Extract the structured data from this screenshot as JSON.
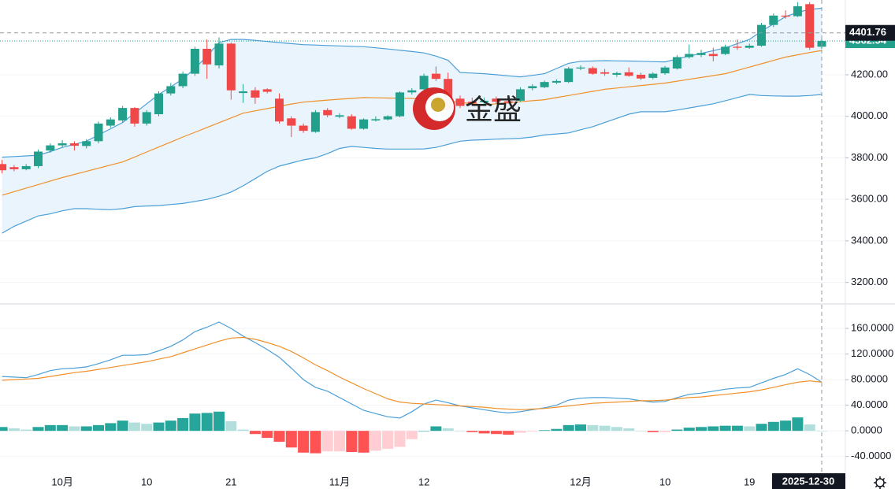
{
  "chart_data": [
    {
      "type": "candlestick",
      "categories": [
        null,
        null,
        null,
        null,
        null,
        "10月",
        null,
        null,
        null,
        null,
        null,
        null,
        "10",
        null,
        null,
        null,
        null,
        null,
        null,
        "21",
        null,
        null,
        null,
        null,
        null,
        null,
        null,
        null,
        "11月",
        null,
        null,
        null,
        null,
        null,
        null,
        "12",
        null,
        null,
        null,
        null,
        null,
        null,
        null,
        null,
        null,
        null,
        null,
        null,
        "12月",
        null,
        null,
        null,
        null,
        null,
        null,
        "10",
        null,
        null,
        null,
        null,
        null,
        null,
        "19",
        null,
        null,
        null,
        null,
        null,
        "2025-12-30"
      ],
      "open": [
        3770,
        3755,
        3745,
        3760,
        3835,
        3860,
        3870,
        3857,
        3880,
        3955,
        3980,
        4040,
        3965,
        4010,
        4110,
        4145,
        4205,
        4325,
        4245,
        4350,
        4112,
        4125,
        4130,
        4085,
        3990,
        3955,
        3925,
        4030,
        3998,
        4000,
        3940,
        3980,
        3985,
        4000,
        4115,
        4130,
        4205,
        4180,
        4085,
        4070,
        4068,
        4085,
        4072,
        4075,
        4135,
        4140,
        4162,
        4165,
        4230,
        4232,
        4212,
        4200,
        4212,
        4200,
        4185,
        4207,
        4230,
        4285,
        4295,
        4300,
        4300,
        4335,
        4330,
        4340,
        4440,
        4485,
        4482,
        4540,
        4335
      ],
      "high": [
        3790,
        3765,
        3770,
        3840,
        3870,
        3885,
        3880,
        3890,
        3975,
        3995,
        4050,
        4045,
        4030,
        4120,
        4160,
        4215,
        4335,
        4370,
        4380,
        4355,
        4155,
        4140,
        4135,
        4110,
        4000,
        3965,
        4030,
        4040,
        4015,
        4010,
        3990,
        4000,
        4005,
        4120,
        4135,
        4205,
        4240,
        4210,
        4100,
        4090,
        4090,
        4095,
        4085,
        4140,
        4155,
        4172,
        4178,
        4238,
        4245,
        4240,
        4228,
        4215,
        4235,
        4210,
        4212,
        4242,
        4295,
        4345,
        4320,
        4330,
        4345,
        4370,
        4350,
        4450,
        4495,
        4510,
        4550,
        4550,
        4375
      ],
      "low": [
        3725,
        3735,
        3740,
        3750,
        3825,
        3850,
        3835,
        3845,
        3870,
        3945,
        3970,
        3950,
        3955,
        4000,
        4100,
        4135,
        4195,
        4180,
        4230,
        4080,
        4065,
        4060,
        4110,
        3965,
        3900,
        3920,
        3920,
        3995,
        3990,
        3935,
        3935,
        3975,
        3980,
        3995,
        4105,
        4125,
        4170,
        4020,
        4040,
        4055,
        4055,
        4060,
        4060,
        4070,
        4125,
        4135,
        4155,
        4160,
        4222,
        4200,
        4195,
        4190,
        4190,
        4175,
        4178,
        4200,
        4225,
        4278,
        4285,
        4265,
        4295,
        4320,
        4325,
        4335,
        4430,
        4470,
        4478,
        4320,
        4325
      ],
      "close": [
        3740,
        3745,
        3760,
        3830,
        3860,
        3870,
        3858,
        3880,
        3965,
        3985,
        4040,
        3965,
        4020,
        4110,
        4145,
        4205,
        4325,
        4250,
        4350,
        4125,
        4120,
        4090,
        4118,
        3975,
        3955,
        3930,
        4020,
        4005,
        4005,
        3940,
        3985,
        3986,
        4000,
        4115,
        4125,
        4195,
        4180,
        4030,
        4050,
        4062,
        4075,
        4070,
        4066,
        4130,
        4145,
        4165,
        4170,
        4230,
        4235,
        4205,
        4205,
        4208,
        4195,
        4182,
        4205,
        4235,
        4285,
        4300,
        4305,
        4290,
        4335,
        4330,
        4340,
        4440,
        4485,
        4480,
        4530,
        4330,
        4362.54
      ],
      "up_color": "#22a08c",
      "down_color": "#f04848",
      "bands": {
        "upper": {
          "color": "#4a9fd8",
          "values": [
            3803,
            3806,
            3809,
            3812,
            3830,
            3850,
            3865,
            3880,
            3910,
            3940,
            3970,
            4015,
            4060,
            4105,
            4142,
            4180,
            4230,
            4290,
            4355,
            4370,
            4370,
            4366,
            4360,
            4355,
            4350,
            4345,
            4343,
            4341,
            4339,
            4337,
            4335,
            4330,
            4324,
            4318,
            4312,
            4305,
            4290,
            4270,
            4211,
            4208,
            4205,
            4200,
            4195,
            4190,
            4197,
            4205,
            4230,
            4255,
            4265,
            4266,
            4268,
            4267,
            4266,
            4265,
            4263,
            4262,
            4276,
            4290,
            4303,
            4316,
            4330,
            4350,
            4370,
            4410,
            4445,
            4480,
            4500,
            4515,
            4520
          ]
        },
        "middle": {
          "color": "#f0902a",
          "values": [
            3620,
            3637,
            3654,
            3671,
            3688,
            3705,
            3720,
            3735,
            3750,
            3765,
            3780,
            3804,
            3828,
            3852,
            3876,
            3900,
            3923,
            3946,
            3969,
            3992,
            4015,
            4026,
            4037,
            4048,
            4059,
            4068,
            4073,
            4078,
            4082,
            4086,
            4090,
            4089,
            4088,
            4087,
            4086,
            4085,
            4079,
            4073,
            4067,
            4061,
            4055,
            4060,
            4065,
            4070,
            4075,
            4080,
            4090,
            4100,
            4110,
            4120,
            4130,
            4136,
            4142,
            4148,
            4154,
            4160,
            4169,
            4178,
            4187,
            4196,
            4205,
            4221,
            4237,
            4253,
            4269,
            4285,
            4296,
            4307,
            4317
          ]
        },
        "lower": {
          "color": "#4a9fd8",
          "values": [
            3437,
            3470,
            3495,
            3520,
            3530,
            3545,
            3555,
            3555,
            3552,
            3550,
            3555,
            3565,
            3568,
            3570,
            3575,
            3580,
            3590,
            3600,
            3615,
            3635,
            3665,
            3700,
            3735,
            3760,
            3775,
            3790,
            3800,
            3820,
            3845,
            3855,
            3850,
            3845,
            3842,
            3842,
            3842,
            3843,
            3850,
            3865,
            3880,
            3885,
            3887,
            3890,
            3892,
            3894,
            3900,
            3910,
            3915,
            3920,
            3935,
            3950,
            3970,
            3990,
            4010,
            4022,
            4022,
            4022,
            4030,
            4040,
            4050,
            4060,
            4075,
            4090,
            4105,
            4100,
            4098,
            4097,
            4097,
            4100,
            4105
          ]
        },
        "fill": "#eaf4fc"
      },
      "ylim": [
        3100,
        4560
      ],
      "yticks": [
        {
          "value": 3200,
          "label": "3200.00"
        },
        {
          "value": 3400,
          "label": "3400.00"
        },
        {
          "value": 3600,
          "label": "3600.00"
        },
        {
          "value": 3800,
          "label": "3800.00"
        },
        {
          "value": 4000,
          "label": "4000.00"
        },
        {
          "value": 4200,
          "label": "4200.00"
        }
      ],
      "grid": true,
      "crosshair_price": 4401.76,
      "watermark": "金盛"
    },
    {
      "type": "macd",
      "macd": {
        "color": "#4a9fd8",
        "values": [
          85,
          84,
          83,
          88,
          94,
          97,
          98,
          100,
          105,
          111,
          118,
          118,
          119,
          125,
          132,
          142,
          155,
          162,
          170,
          160,
          148,
          138,
          127,
          115,
          98,
          80,
          68,
          62,
          52,
          42,
          32,
          27,
          22,
          20,
          30,
          42,
          48,
          44,
          39,
          36,
          33,
          30,
          28,
          30,
          33,
          36,
          40,
          48,
          51,
          52,
          52,
          51,
          50,
          47,
          45,
          46,
          52,
          57,
          59,
          62,
          65,
          67,
          68,
          75,
          82,
          88,
          97,
          88,
          76
        ]
      },
      "signal": {
        "color": "#f0902a",
        "values": [
          79,
          80,
          81,
          82,
          85,
          88,
          91,
          93,
          96,
          99,
          102,
          105,
          108,
          112,
          116,
          122,
          128,
          134,
          140,
          145,
          146,
          143,
          138,
          132,
          124,
          114,
          103,
          94,
          84,
          75,
          66,
          58,
          50,
          45,
          43,
          42,
          41,
          40,
          39,
          38,
          37,
          35,
          34,
          33,
          34,
          35,
          37,
          39,
          41,
          43,
          44,
          45,
          46,
          47,
          47,
          48,
          50,
          52,
          53,
          55,
          57,
          59,
          61,
          64,
          68,
          72,
          76,
          78,
          76
        ]
      },
      "histogram": {
        "colors": [
          "#26a69a",
          "#b2dfdb",
          "#ff5252",
          "#ffcdd2"
        ],
        "values": [
          6,
          4,
          2,
          6,
          9,
          9,
          7,
          7,
          9,
          12,
          16,
          13,
          11,
          13,
          16,
          20,
          27,
          28,
          30,
          15,
          2,
          -5,
          -11,
          -17,
          -26,
          -34,
          -35,
          -32,
          -32,
          -33,
          -34,
          -31,
          -28,
          -25,
          -13,
          0,
          7,
          4,
          0,
          -2,
          -4,
          -5,
          -6,
          -3,
          -1,
          1,
          3,
          9,
          10,
          9,
          8,
          6,
          4,
          0,
          -2,
          -2,
          2,
          5,
          6,
          7,
          8,
          8,
          7,
          11,
          14,
          16,
          21,
          10,
          0
        ]
      },
      "ylim": [
        -65,
        197
      ],
      "yticks": [
        {
          "value": -40,
          "label": "-40.0000"
        },
        {
          "value": 0,
          "label": "0.0000"
        },
        {
          "value": 40,
          "label": "40.0000"
        },
        {
          "value": 80,
          "label": "80.0000"
        },
        {
          "value": 120,
          "label": "120.0000"
        },
        {
          "value": 160,
          "label": "160.0000"
        }
      ],
      "grid": true
    }
  ]
}
